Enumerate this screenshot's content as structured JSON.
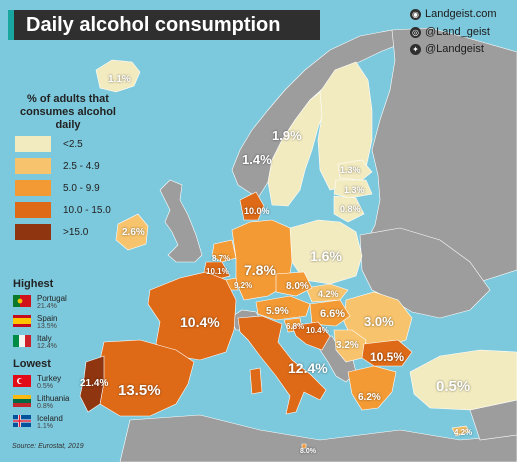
{
  "title": "Daily alcohol consumption",
  "brand": {
    "website": "Landgeist.com",
    "instagram": "@Land_geist",
    "twitter": "@Landgeist"
  },
  "legend": {
    "title": "% of adults that consumes alcohol daily",
    "bins": [
      {
        "label": "<2.5",
        "color": "#f3ebc0"
      },
      {
        "label": "2.5 - 4.9",
        "color": "#f7c36c"
      },
      {
        "label": "5.0 - 9.9",
        "color": "#f39a35"
      },
      {
        "label": "10.0 - 15.0",
        "color": "#de6a17"
      },
      {
        "label": ">15.0",
        "color": "#8f3510"
      }
    ]
  },
  "highest": {
    "title": "Highest",
    "items": [
      {
        "country": "Portugal",
        "value": "21.4%"
      },
      {
        "country": "Spain",
        "value": "13.5%"
      },
      {
        "country": "Italy",
        "value": "12.4%"
      }
    ]
  },
  "lowest": {
    "title": "Lowest",
    "items": [
      {
        "country": "Turkey",
        "value": "0.5%"
      },
      {
        "country": "Lithuania",
        "value": "0.8%"
      },
      {
        "country": "Iceland",
        "value": "1.1%"
      }
    ]
  },
  "source": "Source: Eurostat, 2019",
  "map_labels": {
    "iceland": "1.1%",
    "sweden": "1.9%",
    "finland": "1.4%",
    "estonia": "1.3%",
    "latvia": "1.3%",
    "lithuania": "0.8%",
    "denmark": "10.0%",
    "ireland": "2.6%",
    "poland": "1.6%",
    "netherlands": "8.7%",
    "belgium": "10.1%",
    "germany": "7.8%",
    "luxembourg": "9.2%",
    "czechia": "8.0%",
    "slovakia": "4.2%",
    "austria": "5.9%",
    "hungary": "6.6%",
    "romania": "3.0%",
    "slovenia": "6.8%",
    "croatia": "10.4%",
    "france": "10.4%",
    "serbia": "3.2%",
    "bulgaria": "10.5%",
    "italy": "12.4%",
    "portugal": "21.4%",
    "spain": "13.5%",
    "greece": "6.2%",
    "turkey": "0.5%",
    "cyprus": "4.2%",
    "malta": "8.0%"
  }
}
